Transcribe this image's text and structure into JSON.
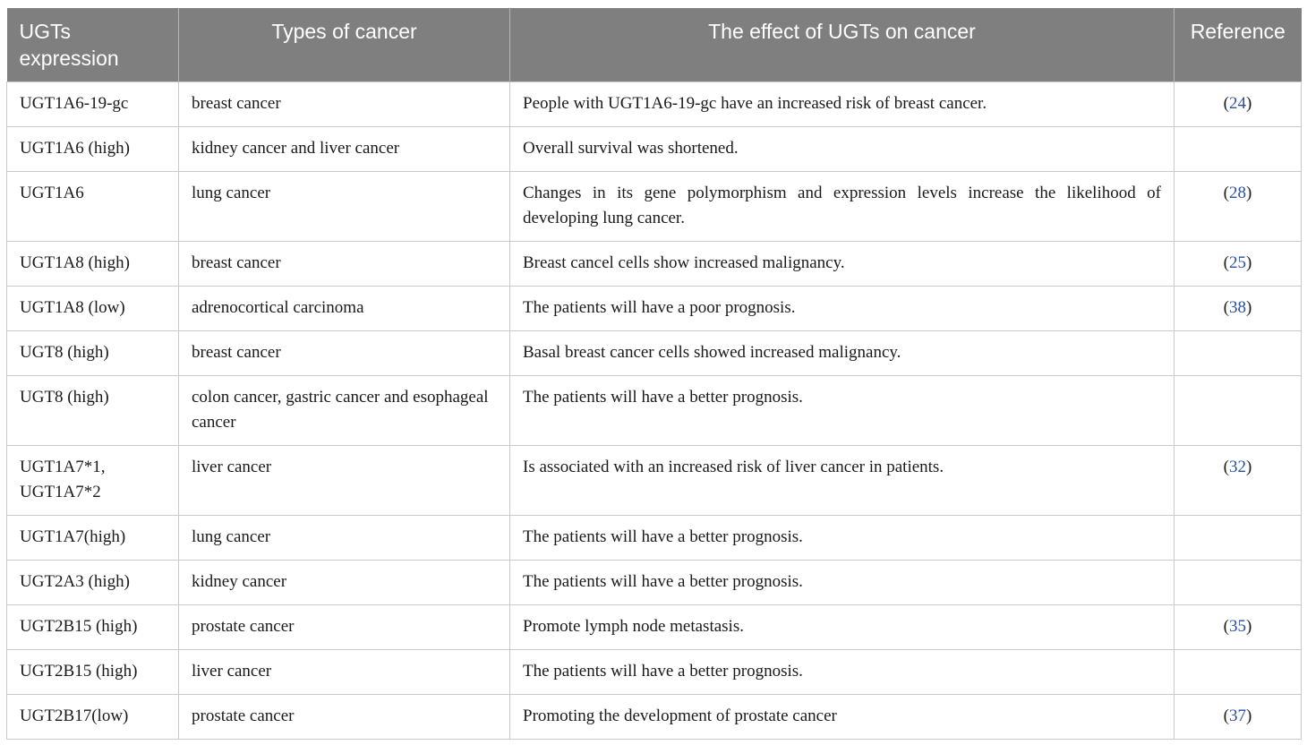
{
  "table": {
    "headers": [
      "UGTs expression",
      "Types of cancer",
      "The effect of UGTs on cancer",
      "Reference"
    ],
    "rows": [
      {
        "expression": "UGT1A6-19-gc",
        "cancer": "breast cancer",
        "effect": "People with UGT1A6-19-gc have an increased risk of breast cancer.",
        "ref": "24"
      },
      {
        "expression": "UGT1A6 (high)",
        "cancer": "kidney cancer and liver cancer",
        "effect": "Overall survival was shortened.",
        "ref": ""
      },
      {
        "expression": "UGT1A6",
        "cancer": "lung cancer",
        "effect": "Changes in its gene polymorphism and expression levels increase the likelihood of developing lung cancer.",
        "ref": "28"
      },
      {
        "expression": "UGT1A8 (high)",
        "cancer": "breast cancer",
        "effect": "Breast cancel cells show increased malignancy.",
        "ref": "25"
      },
      {
        "expression": "UGT1A8 (low)",
        "cancer": "adrenocortical carcinoma",
        "effect": "The patients will have a poor prognosis.",
        "ref": "38"
      },
      {
        "expression": "UGT8 (high)",
        "cancer": "breast cancer",
        "effect": "Basal breast cancer cells showed increased malignancy.",
        "ref": ""
      },
      {
        "expression": "UGT8 (high)",
        "cancer": "colon cancer, gastric cancer and esophageal cancer",
        "effect": "The patients will have a better prognosis.",
        "ref": ""
      },
      {
        "expression": "UGT1A7*1, UGT1A7*2",
        "cancer": "liver cancer",
        "effect": "Is associated with an increased risk of liver cancer in patients.",
        "ref": "32"
      },
      {
        "expression": "UGT1A7(high)",
        "cancer": "lung cancer",
        "effect": "The patients will have a better prognosis.",
        "ref": ""
      },
      {
        "expression": "UGT2A3 (high)",
        "cancer": "kidney cancer",
        "effect": "The patients will have a better prognosis.",
        "ref": ""
      },
      {
        "expression": "UGT2B15 (high)",
        "cancer": "prostate cancer",
        "effect": "Promote lymph node metastasis.",
        "ref": "35"
      },
      {
        "expression": "UGT2B15 (high)",
        "cancer": "liver cancer",
        "effect": "The patients will have a better prognosis.",
        "ref": ""
      },
      {
        "expression": "UGT2B17(low)",
        "cancer": "prostate cancer",
        "effect": "Promoting the development of prostate cancer",
        "ref": "37"
      }
    ]
  }
}
